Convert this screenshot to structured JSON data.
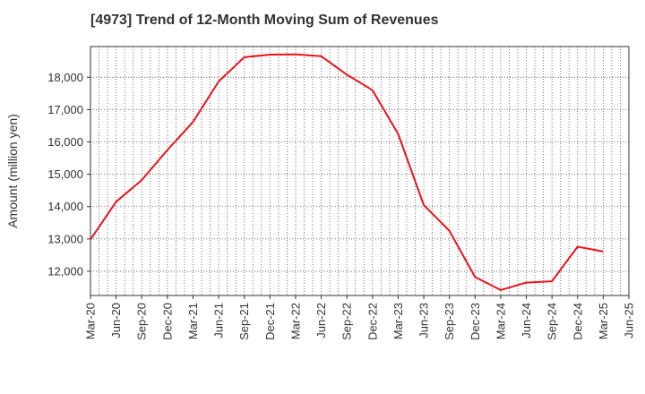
{
  "chart_data": {
    "type": "line",
    "title": "[4973]  Trend of 12-Month Moving Sum of Revenues",
    "xlabel": "",
    "ylabel": "Amount (million yen)",
    "x_ticks": [
      "Mar-20",
      "Jun-20",
      "Sep-20",
      "Dec-20",
      "Mar-21",
      "Jun-21",
      "Sep-21",
      "Dec-21",
      "Mar-22",
      "Jun-22",
      "Sep-22",
      "Dec-22",
      "Mar-23",
      "Jun-23",
      "Sep-23",
      "Dec-23",
      "Mar-24",
      "Jun-24",
      "Sep-24",
      "Dec-24",
      "Mar-25",
      "Jun-25"
    ],
    "y_ticks": [
      12000,
      13000,
      14000,
      15000,
      16000,
      17000,
      18000
    ],
    "y_tick_labels": [
      "12,000",
      "13,000",
      "14,000",
      "15,000",
      "16,000",
      "17,000",
      "18,000"
    ],
    "ylim": [
      11250,
      18950
    ],
    "grid": true,
    "series": [
      {
        "color": "#e8141b",
        "x": [
          "Mar-20",
          "Jun-20",
          "Sep-20",
          "Dec-20",
          "Mar-21",
          "Jun-21",
          "Sep-21",
          "Dec-21",
          "Mar-22",
          "Jun-22",
          "Sep-22",
          "Dec-22",
          "Mar-23",
          "Jun-23",
          "Sep-23",
          "Dec-23",
          "Mar-24",
          "Jun-24",
          "Sep-24",
          "Dec-24",
          "Mar-25"
        ],
        "values": [
          12980,
          14150,
          14820,
          15750,
          16620,
          17870,
          18620,
          18700,
          18710,
          18650,
          18080,
          17600,
          16250,
          14050,
          13250,
          11820,
          11420,
          11650,
          11690,
          12760,
          12610
        ]
      }
    ]
  }
}
